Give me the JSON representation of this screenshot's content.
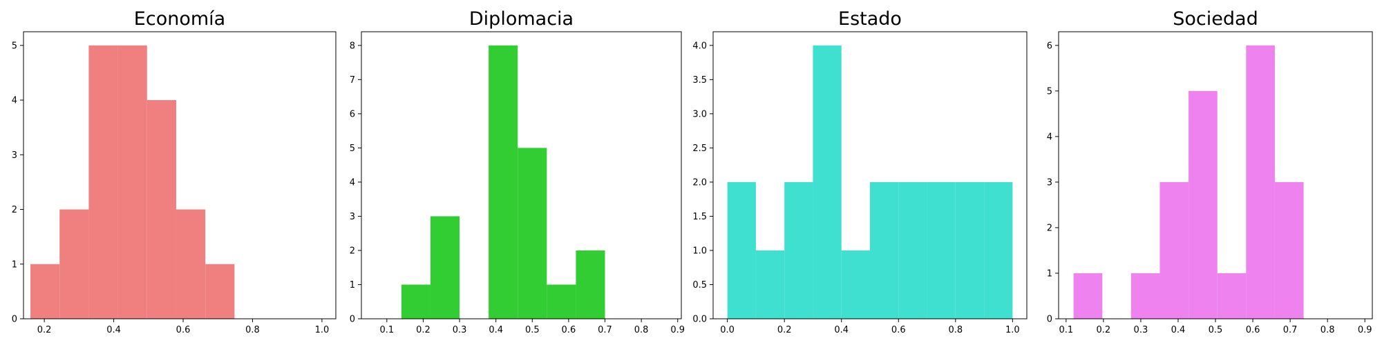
{
  "chart_data": [
    {
      "type": "bar",
      "title": "Economía",
      "color": "#f08080",
      "xlabel": "",
      "ylabel": "",
      "xlim": [
        0.14,
        1.04
      ],
      "ylim": [
        0,
        5.25
      ],
      "xticks": [
        0.2,
        0.4,
        0.6,
        0.8,
        1.0
      ],
      "xtick_labels": [
        "0.2",
        "0.4",
        "0.6",
        "0.8",
        "1.0"
      ],
      "yticks": [
        0,
        1,
        2,
        3,
        4,
        5
      ],
      "ytick_labels": [
        "0",
        "1",
        "2",
        "3",
        "4",
        "5"
      ],
      "grid": false,
      "bins": [
        {
          "x0": 0.16,
          "x1": 0.244,
          "count": 1
        },
        {
          "x0": 0.244,
          "x1": 0.328,
          "count": 2
        },
        {
          "x0": 0.328,
          "x1": 0.412,
          "count": 5
        },
        {
          "x0": 0.412,
          "x1": 0.496,
          "count": 5
        },
        {
          "x0": 0.496,
          "x1": 0.58,
          "count": 4
        },
        {
          "x0": 0.58,
          "x1": 0.664,
          "count": 2
        },
        {
          "x0": 0.664,
          "x1": 0.748,
          "count": 1
        }
      ]
    },
    {
      "type": "bar",
      "title": "Diplomacia",
      "color": "#32cd32",
      "xlabel": "",
      "ylabel": "",
      "xlim": [
        0.03,
        0.91
      ],
      "ylim": [
        0,
        8.4
      ],
      "xticks": [
        0.1,
        0.2,
        0.3,
        0.4,
        0.5,
        0.6,
        0.7,
        0.8,
        0.9
      ],
      "xtick_labels": [
        "0.1",
        "0.2",
        "0.3",
        "0.4",
        "0.5",
        "0.6",
        "0.7",
        "0.8",
        "0.9"
      ],
      "yticks": [
        0,
        1,
        2,
        3,
        4,
        5,
        6,
        7,
        8
      ],
      "ytick_labels": [
        "0",
        "1",
        "2",
        "3",
        "4",
        "5",
        "6",
        "7",
        "8"
      ],
      "grid": false,
      "bins": [
        {
          "x0": 0.14,
          "x1": 0.22,
          "count": 1
        },
        {
          "x0": 0.22,
          "x1": 0.3,
          "count": 3
        },
        {
          "x0": 0.3,
          "x1": 0.38,
          "count": 0
        },
        {
          "x0": 0.38,
          "x1": 0.46,
          "count": 8
        },
        {
          "x0": 0.46,
          "x1": 0.54,
          "count": 5
        },
        {
          "x0": 0.54,
          "x1": 0.62,
          "count": 1
        },
        {
          "x0": 0.62,
          "x1": 0.7,
          "count": 2
        }
      ]
    },
    {
      "type": "bar",
      "title": "Estado",
      "color": "#40e0d0",
      "xlabel": "",
      "ylabel": "",
      "xlim": [
        -0.05,
        1.05
      ],
      "ylim": [
        0,
        4.2
      ],
      "xticks": [
        0.0,
        0.2,
        0.4,
        0.6,
        0.8,
        1.0
      ],
      "xtick_labels": [
        "0.0",
        "0.2",
        "0.4",
        "0.6",
        "0.8",
        "1.0"
      ],
      "yticks": [
        0,
        0.5,
        1.0,
        1.5,
        2.0,
        2.5,
        3.0,
        3.5,
        4.0
      ],
      "ytick_labels": [
        "0.0",
        "0.5",
        "1.0",
        "1.5",
        "2.0",
        "2.5",
        "3.0",
        "3.5",
        "4.0"
      ],
      "grid": false,
      "bins": [
        {
          "x0": 0.0,
          "x1": 0.1,
          "count": 2
        },
        {
          "x0": 0.1,
          "x1": 0.2,
          "count": 1
        },
        {
          "x0": 0.2,
          "x1": 0.3,
          "count": 2
        },
        {
          "x0": 0.3,
          "x1": 0.4,
          "count": 4
        },
        {
          "x0": 0.4,
          "x1": 0.5,
          "count": 1
        },
        {
          "x0": 0.5,
          "x1": 0.6,
          "count": 2
        },
        {
          "x0": 0.6,
          "x1": 0.7,
          "count": 2
        },
        {
          "x0": 0.7,
          "x1": 0.8,
          "count": 2
        },
        {
          "x0": 0.8,
          "x1": 0.9,
          "count": 2
        },
        {
          "x0": 0.9,
          "x1": 1.0,
          "count": 2
        }
      ]
    },
    {
      "type": "bar",
      "title": "Sociedad",
      "color": "#ee82ee",
      "xlabel": "",
      "ylabel": "",
      "xlim": [
        0.08,
        0.92
      ],
      "ylim": [
        0,
        6.3
      ],
      "xticks": [
        0.1,
        0.2,
        0.3,
        0.4,
        0.5,
        0.6,
        0.7,
        0.8,
        0.9
      ],
      "xtick_labels": [
        "0.1",
        "0.2",
        "0.3",
        "0.4",
        "0.5",
        "0.6",
        "0.7",
        "0.8",
        "0.9"
      ],
      "yticks": [
        0,
        1,
        2,
        3,
        4,
        5,
        6
      ],
      "ytick_labels": [
        "0",
        "1",
        "2",
        "3",
        "4",
        "5",
        "6"
      ],
      "grid": false,
      "bins": [
        {
          "x0": 0.12,
          "x1": 0.197,
          "count": 1
        },
        {
          "x0": 0.197,
          "x1": 0.274,
          "count": 0
        },
        {
          "x0": 0.274,
          "x1": 0.351,
          "count": 1
        },
        {
          "x0": 0.351,
          "x1": 0.428,
          "count": 3
        },
        {
          "x0": 0.428,
          "x1": 0.505,
          "count": 5
        },
        {
          "x0": 0.505,
          "x1": 0.582,
          "count": 1
        },
        {
          "x0": 0.582,
          "x1": 0.659,
          "count": 6
        },
        {
          "x0": 0.659,
          "x1": 0.736,
          "count": 3
        }
      ]
    }
  ]
}
